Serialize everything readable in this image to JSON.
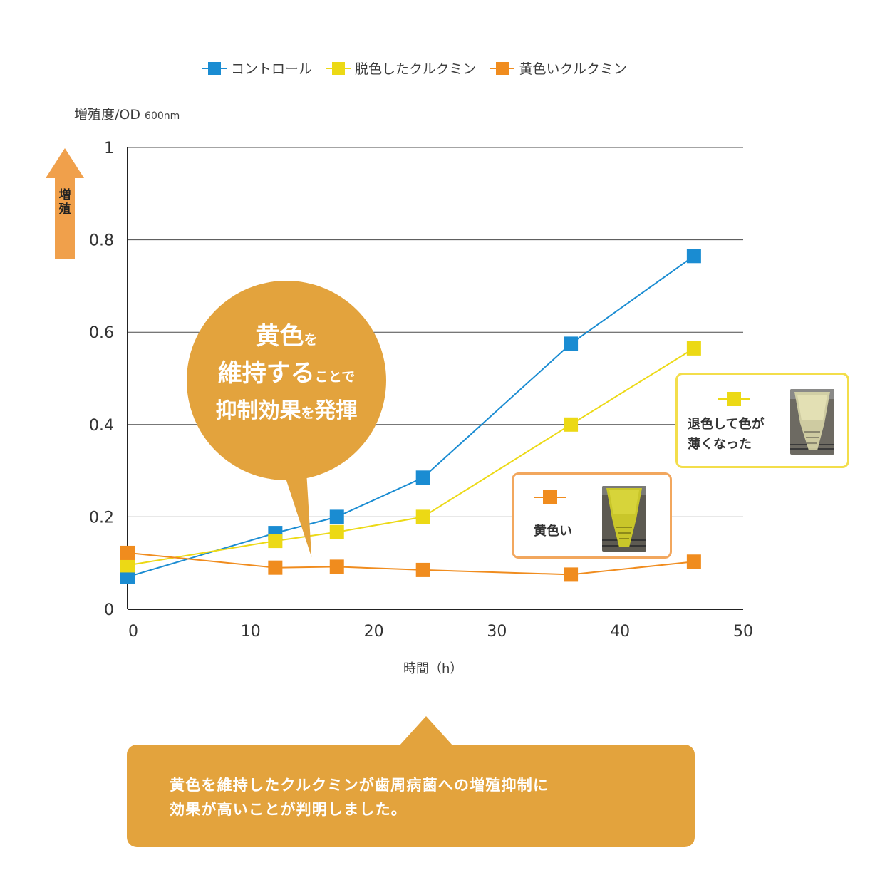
{
  "chart_data": {
    "type": "line",
    "title": "",
    "ylabel": "増殖度/OD",
    "ylabel_unit": "600nm",
    "xlabel": "時間（h）",
    "xlim": [
      0,
      50
    ],
    "ylim": [
      0,
      1
    ],
    "x_ticks": [
      "0",
      "10",
      "20",
      "30",
      "40",
      "50"
    ],
    "y_ticks": [
      "0",
      "0.2",
      "0.4",
      "0.6",
      "0.8",
      "1"
    ],
    "grid": "horizontal",
    "legend_position": "top",
    "series": [
      {
        "name": "コントロール",
        "color": "#1a8cd2",
        "x": [
          0,
          12,
          17,
          24,
          36,
          46
        ],
        "y": [
          0.07,
          0.165,
          0.2,
          0.285,
          0.575,
          0.765
        ]
      },
      {
        "name": "脱色したクルクミン",
        "color": "#ecd915",
        "x": [
          0,
          12,
          17,
          24,
          36,
          46
        ],
        "y": [
          0.095,
          0.148,
          0.167,
          0.2,
          0.4,
          0.565
        ]
      },
      {
        "name": "黄色いクルクミン",
        "color": "#f08c1e",
        "x": [
          0,
          12,
          17,
          24,
          36,
          46
        ],
        "y": [
          0.122,
          0.09,
          0.092,
          0.085,
          0.075,
          0.103
        ]
      }
    ]
  },
  "legend": {
    "items": [
      {
        "label": "コントロール",
        "color": "#1a8cd2"
      },
      {
        "label": "脱色したクルクミン",
        "color": "#ecd915"
      },
      {
        "label": "黄色いクルクミン",
        "color": "#f08c1e"
      }
    ]
  },
  "arrow": {
    "label": "増殖",
    "color": "#f0a04b"
  },
  "bubble": {
    "line1_big": "黄色",
    "line1_small": "を",
    "line2_big": "維持する",
    "line2_small": "ことで",
    "line3_a": "抑制効果",
    "line3_small": "を",
    "line3_b": "発揮",
    "color": "#e3a33d"
  },
  "inset_yellow": {
    "line1": "退色して色が",
    "line2": "薄くなった",
    "color": "#ecd915"
  },
  "inset_orange": {
    "label": "黄色い",
    "color": "#f08c1e"
  },
  "note": {
    "line1": "黄色を維持したクルクミンが歯周病菌への増殖抑制に",
    "line2": "効果が高いことが判明しました。",
    "color": "#e3a33d"
  }
}
